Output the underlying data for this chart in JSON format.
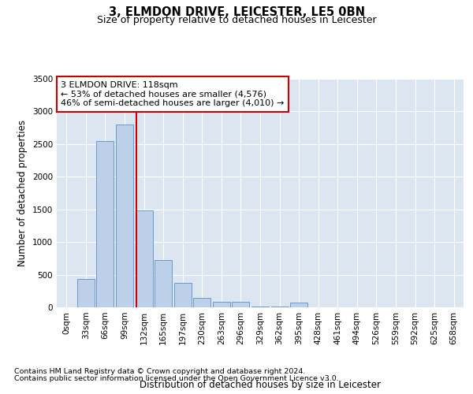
{
  "title": "3, ELMDON DRIVE, LEICESTER, LE5 0BN",
  "subtitle": "Size of property relative to detached houses in Leicester",
  "xlabel": "Distribution of detached houses by size in Leicester",
  "ylabel": "Number of detached properties",
  "footnote1": "Contains HM Land Registry data © Crown copyright and database right 2024.",
  "footnote2": "Contains public sector information licensed under the Open Government Licence v3.0.",
  "annotation_line1": "3 ELMDON DRIVE: 118sqm",
  "annotation_line2": "← 53% of detached houses are smaller (4,576)",
  "annotation_line3": "46% of semi-detached houses are larger (4,010) →",
  "bar_labels": [
    "0sqm",
    "33sqm",
    "66sqm",
    "99sqm",
    "132sqm",
    "165sqm",
    "197sqm",
    "230sqm",
    "263sqm",
    "296sqm",
    "329sqm",
    "362sqm",
    "395sqm",
    "428sqm",
    "461sqm",
    "494sqm",
    "526sqm",
    "559sqm",
    "592sqm",
    "625sqm",
    "658sqm"
  ],
  "bar_values": [
    5,
    430,
    2550,
    2800,
    1480,
    730,
    370,
    150,
    90,
    90,
    15,
    15,
    75,
    5,
    5,
    0,
    0,
    0,
    0,
    0,
    0
  ],
  "bar_color": "#bdd0e9",
  "bar_edge_color": "#5b8fc9",
  "vline_x": 3.6,
  "vline_color": "#cc0000",
  "ylim": [
    0,
    3500
  ],
  "yticks": [
    0,
    500,
    1000,
    1500,
    2000,
    2500,
    3000,
    3500
  ],
  "plot_bg_color": "#dce6f0",
  "annotation_box_color": "#cc0000",
  "title_fontsize": 10.5,
  "subtitle_fontsize": 9,
  "axis_label_fontsize": 8.5,
  "tick_fontsize": 7.5,
  "annotation_fontsize": 8,
  "footnote_fontsize": 6.8
}
